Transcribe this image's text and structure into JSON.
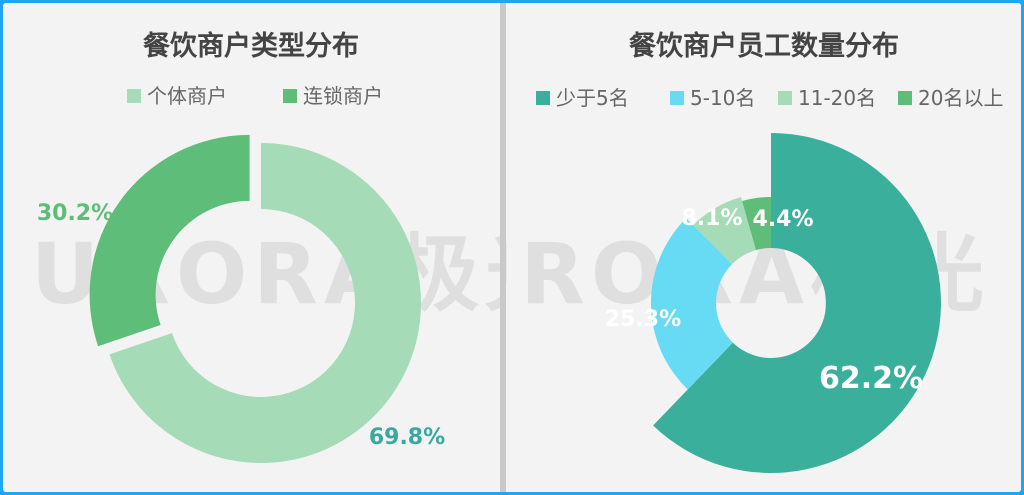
{
  "watermark": "URORA极光",
  "chart_data": [
    {
      "type": "pie",
      "title": "餐饮商户类型分布",
      "donut": true,
      "legend_position": "top",
      "labels": [
        "个体商户",
        "连锁商户"
      ],
      "values": [
        69.8,
        30.2
      ],
      "value_labels": [
        "69.8%",
        "30.2%"
      ],
      "colors": [
        "#a5dbb6",
        "#5dbd79"
      ],
      "label_colors": [
        "#3aa89f",
        "#5dbd79"
      ]
    },
    {
      "type": "pie",
      "title": "餐饮商户员工数量分布",
      "donut": true,
      "legend_position": "top",
      "labels": [
        "少于5名",
        "5-10名",
        "11-20名",
        "20名以上"
      ],
      "values": [
        62.2,
        25.3,
        8.1,
        4.4
      ],
      "value_labels": [
        "62.2%",
        "25.3%",
        "8.1%",
        "4.4%"
      ],
      "colors": [
        "#3aaf9c",
        "#66dbf3",
        "#a5dbb6",
        "#5dbd79"
      ],
      "label_colors": [
        "#ffffff",
        "#ffffff",
        "#ffffff",
        "#ffffff"
      ]
    }
  ]
}
